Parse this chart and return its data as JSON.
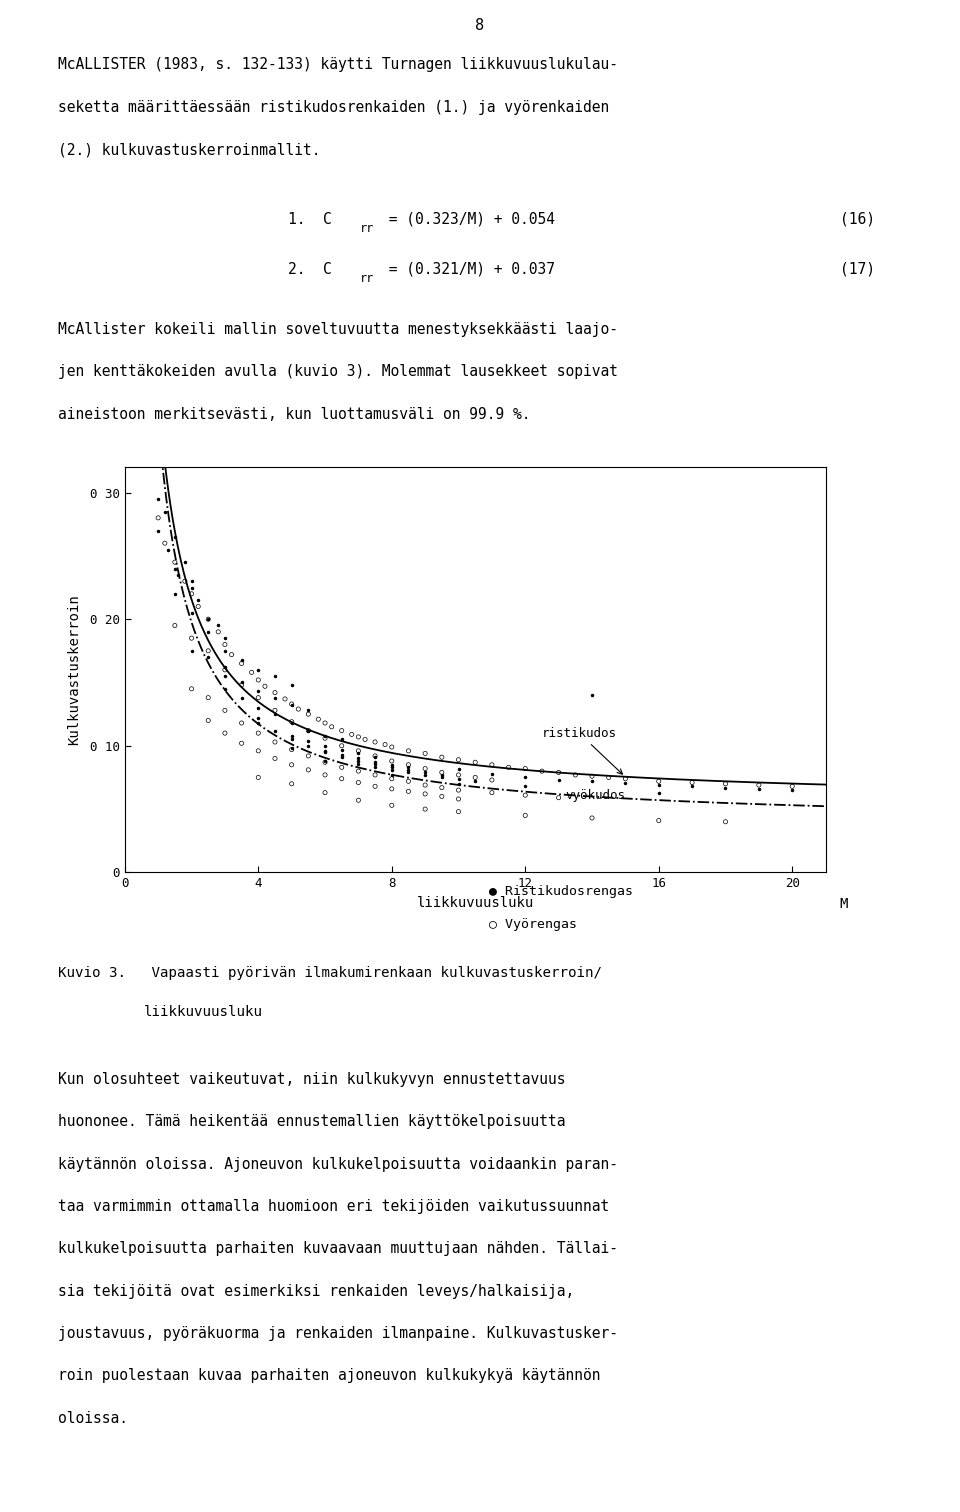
{
  "page_number": "8",
  "bg_color": "#ffffff",
  "text_color": "#000000",
  "paragraph1_lines": [
    "McALLISTER (1983, s. 132-133) käytti Turnagen liikkuvuuslukulau-",
    "seketta määrittäessään ristikudosrenkaiden (1.) ja vyörenkaiden",
    "(2.) kulkuvastuskerroinmallit."
  ],
  "eq1_num": "(16)",
  "eq2_num": "(17)",
  "paragraph2_lines": [
    "McAllister kokeili mallin soveltuvuutta menestyksekkäästi laajo-",
    "jen kenttäkokeiden avulla (kuvio 3). Molemmat lausekkeet sopivat",
    "aineistoon merkitsevästi, kun luottamusväli on 99.9 %."
  ],
  "xlabel": "liikkuvuusluku",
  "ylabel": "Kulkuvastuskerroin",
  "xunit": "M",
  "xticks": [
    0,
    4,
    8,
    12,
    16,
    20
  ],
  "xtick_labels": [
    "0",
    "4",
    "8",
    "12",
    "16",
    "20"
  ],
  "yticks": [
    0.0,
    0.1,
    0.2,
    0.3
  ],
  "ytick_labels": [
    "0",
    "0 10",
    "0 20",
    "0 30"
  ],
  "legend_dot": "Ristikudosrengas",
  "legend_circle": "Vyörengas",
  "label_ristikudos": "ristikudos",
  "label_vyokudos": "vyökudos",
  "caption_line1": "Kuvio 3.   Vapaasti pyörivän ilmakumirenkaan kulkuvastuskerroin/",
  "caption_line2": "           liikkuvuusluku",
  "paragraph3_lines": [
    "Kun olosuhteet vaikeutuvat, niin kulkukyvyn ennustettavuus",
    "huononee. Tämä heikentää ennustemallien käyttökelpoisuutta",
    "käytännön oloissa. Ajoneuvon kulkukelpoisuutta voidaankin paran-",
    "taa varmimmin ottamalla huomioon eri tekijöiden vaikutussuunnat",
    "kulkukelpoisuutta parhaiten kuvaavaan muuttujaan nähden. Tällai-",
    "sia tekijöitä ovat esimerkiksi renkaiden leveys/halkaisija,",
    "joustavuus, pyöräkuorma ja renkaiden ilmanpaine. Kulkuvastusker-",
    "roin puolestaan kuvaa parhaiten ajoneuvon kulkukykyä käytännön",
    "oloissa."
  ],
  "scatter_ristikudos": [
    [
      1.0,
      0.295
    ],
    [
      1.2,
      0.285
    ],
    [
      1.5,
      0.265
    ],
    [
      1.8,
      0.245
    ],
    [
      1.0,
      0.27
    ],
    [
      1.3,
      0.255
    ],
    [
      1.6,
      0.235
    ],
    [
      2.0,
      0.225
    ],
    [
      2.2,
      0.215
    ],
    [
      2.5,
      0.2
    ],
    [
      2.8,
      0.195
    ],
    [
      3.0,
      0.185
    ],
    [
      1.5,
      0.22
    ],
    [
      2.0,
      0.205
    ],
    [
      2.5,
      0.19
    ],
    [
      3.0,
      0.175
    ],
    [
      3.5,
      0.168
    ],
    [
      4.0,
      0.16
    ],
    [
      4.5,
      0.155
    ],
    [
      5.0,
      0.148
    ],
    [
      2.0,
      0.175
    ],
    [
      2.5,
      0.17
    ],
    [
      3.0,
      0.162
    ],
    [
      3.5,
      0.15
    ],
    [
      4.0,
      0.143
    ],
    [
      4.5,
      0.138
    ],
    [
      5.0,
      0.132
    ],
    [
      5.5,
      0.128
    ],
    [
      3.0,
      0.145
    ],
    [
      3.5,
      0.138
    ],
    [
      4.0,
      0.13
    ],
    [
      4.5,
      0.125
    ],
    [
      5.0,
      0.118
    ],
    [
      5.5,
      0.112
    ],
    [
      6.0,
      0.108
    ],
    [
      6.5,
      0.105
    ],
    [
      4.0,
      0.118
    ],
    [
      4.5,
      0.112
    ],
    [
      5.0,
      0.108
    ],
    [
      5.5,
      0.104
    ],
    [
      6.0,
      0.1
    ],
    [
      6.5,
      0.097
    ],
    [
      7.0,
      0.094
    ],
    [
      7.5,
      0.091
    ],
    [
      5.0,
      0.105
    ],
    [
      5.5,
      0.1
    ],
    [
      6.0,
      0.096
    ],
    [
      6.5,
      0.093
    ],
    [
      7.0,
      0.09
    ],
    [
      7.5,
      0.087
    ],
    [
      8.0,
      0.085
    ],
    [
      8.5,
      0.083
    ],
    [
      6.0,
      0.095
    ],
    [
      6.5,
      0.091
    ],
    [
      7.0,
      0.088
    ],
    [
      7.5,
      0.086
    ],
    [
      8.0,
      0.083
    ],
    [
      8.5,
      0.081
    ],
    [
      9.0,
      0.079
    ],
    [
      9.5,
      0.077
    ],
    [
      7.0,
      0.086
    ],
    [
      7.5,
      0.083
    ],
    [
      8.0,
      0.081
    ],
    [
      8.5,
      0.079
    ],
    [
      9.0,
      0.077
    ],
    [
      9.5,
      0.075
    ],
    [
      10.0,
      0.074
    ],
    [
      10.5,
      0.072
    ],
    [
      10.0,
      0.082
    ],
    [
      11.0,
      0.078
    ],
    [
      12.0,
      0.075
    ],
    [
      13.0,
      0.073
    ],
    [
      14.0,
      0.14
    ],
    [
      15.0,
      0.071
    ],
    [
      16.0,
      0.069
    ],
    [
      17.0,
      0.068
    ],
    [
      18.0,
      0.067
    ],
    [
      19.0,
      0.066
    ],
    [
      20.0,
      0.065
    ],
    [
      1.5,
      0.24
    ],
    [
      2.0,
      0.23
    ],
    [
      3.0,
      0.155
    ],
    [
      4.0,
      0.122
    ],
    [
      5.0,
      0.098
    ],
    [
      6.0,
      0.088
    ],
    [
      8.0,
      0.077
    ],
    [
      10.0,
      0.07
    ],
    [
      12.0,
      0.068
    ],
    [
      14.0,
      0.072
    ],
    [
      16.0,
      0.063
    ]
  ],
  "scatter_vyorengas": [
    [
      1.0,
      0.28
    ],
    [
      1.2,
      0.26
    ],
    [
      1.5,
      0.245
    ],
    [
      1.8,
      0.23
    ],
    [
      2.0,
      0.22
    ],
    [
      2.2,
      0.21
    ],
    [
      2.5,
      0.2
    ],
    [
      2.8,
      0.19
    ],
    [
      3.0,
      0.18
    ],
    [
      3.2,
      0.172
    ],
    [
      3.5,
      0.165
    ],
    [
      3.8,
      0.158
    ],
    [
      4.0,
      0.152
    ],
    [
      4.2,
      0.147
    ],
    [
      4.5,
      0.142
    ],
    [
      4.8,
      0.137
    ],
    [
      5.0,
      0.133
    ],
    [
      5.2,
      0.129
    ],
    [
      5.5,
      0.125
    ],
    [
      5.8,
      0.121
    ],
    [
      6.0,
      0.118
    ],
    [
      6.2,
      0.115
    ],
    [
      6.5,
      0.112
    ],
    [
      6.8,
      0.109
    ],
    [
      7.0,
      0.107
    ],
    [
      7.2,
      0.105
    ],
    [
      7.5,
      0.103
    ],
    [
      7.8,
      0.101
    ],
    [
      8.0,
      0.099
    ],
    [
      8.5,
      0.096
    ],
    [
      9.0,
      0.094
    ],
    [
      9.5,
      0.091
    ],
    [
      10.0,
      0.089
    ],
    [
      10.5,
      0.087
    ],
    [
      11.0,
      0.085
    ],
    [
      11.5,
      0.083
    ],
    [
      12.0,
      0.082
    ],
    [
      12.5,
      0.08
    ],
    [
      13.0,
      0.079
    ],
    [
      13.5,
      0.077
    ],
    [
      14.0,
      0.076
    ],
    [
      14.5,
      0.075
    ],
    [
      15.0,
      0.074
    ],
    [
      16.0,
      0.072
    ],
    [
      17.0,
      0.071
    ],
    [
      18.0,
      0.07
    ],
    [
      19.0,
      0.069
    ],
    [
      20.0,
      0.068
    ],
    [
      1.5,
      0.195
    ],
    [
      2.0,
      0.185
    ],
    [
      2.5,
      0.175
    ],
    [
      3.0,
      0.16
    ],
    [
      3.5,
      0.148
    ],
    [
      4.0,
      0.138
    ],
    [
      4.5,
      0.128
    ],
    [
      5.0,
      0.119
    ],
    [
      5.5,
      0.112
    ],
    [
      6.0,
      0.106
    ],
    [
      6.5,
      0.1
    ],
    [
      7.0,
      0.096
    ],
    [
      7.5,
      0.092
    ],
    [
      8.0,
      0.088
    ],
    [
      8.5,
      0.085
    ],
    [
      9.0,
      0.082
    ],
    [
      9.5,
      0.079
    ],
    [
      10.0,
      0.077
    ],
    [
      10.5,
      0.075
    ],
    [
      11.0,
      0.073
    ],
    [
      2.0,
      0.145
    ],
    [
      2.5,
      0.138
    ],
    [
      3.0,
      0.128
    ],
    [
      3.5,
      0.118
    ],
    [
      4.0,
      0.11
    ],
    [
      4.5,
      0.103
    ],
    [
      5.0,
      0.097
    ],
    [
      5.5,
      0.092
    ],
    [
      6.0,
      0.087
    ],
    [
      6.5,
      0.083
    ],
    [
      7.0,
      0.08
    ],
    [
      7.5,
      0.077
    ],
    [
      8.0,
      0.074
    ],
    [
      8.5,
      0.072
    ],
    [
      9.0,
      0.069
    ],
    [
      9.5,
      0.067
    ],
    [
      10.0,
      0.065
    ],
    [
      11.0,
      0.063
    ],
    [
      12.0,
      0.061
    ],
    [
      13.0,
      0.059
    ],
    [
      2.5,
      0.12
    ],
    [
      3.0,
      0.11
    ],
    [
      3.5,
      0.102
    ],
    [
      4.0,
      0.096
    ],
    [
      4.5,
      0.09
    ],
    [
      5.0,
      0.085
    ],
    [
      5.5,
      0.081
    ],
    [
      6.0,
      0.077
    ],
    [
      6.5,
      0.074
    ],
    [
      7.0,
      0.071
    ],
    [
      7.5,
      0.068
    ],
    [
      8.0,
      0.066
    ],
    [
      8.5,
      0.064
    ],
    [
      9.0,
      0.062
    ],
    [
      9.5,
      0.06
    ],
    [
      10.0,
      0.058
    ],
    [
      4.0,
      0.075
    ],
    [
      5.0,
      0.07
    ],
    [
      6.0,
      0.063
    ],
    [
      7.0,
      0.057
    ],
    [
      8.0,
      0.053
    ],
    [
      9.0,
      0.05
    ],
    [
      10.0,
      0.048
    ],
    [
      12.0,
      0.045
    ],
    [
      14.0,
      0.043
    ],
    [
      16.0,
      0.041
    ],
    [
      18.0,
      0.04
    ]
  ]
}
